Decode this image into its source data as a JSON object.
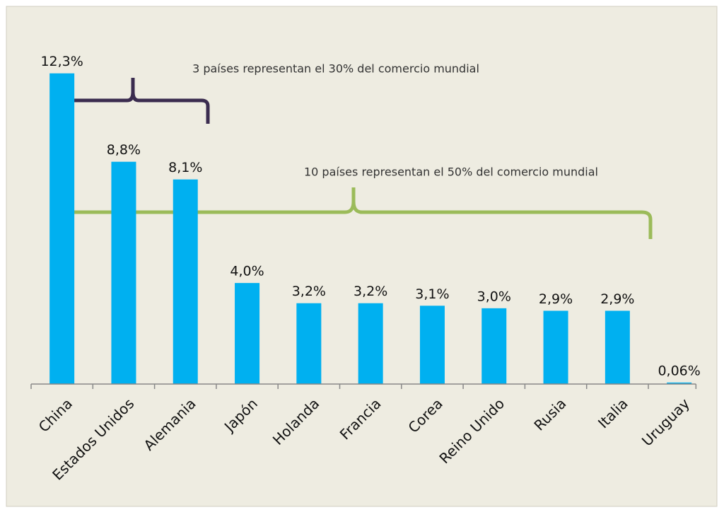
{
  "chart_data": {
    "type": "bar",
    "categories": [
      "China",
      "Estados Unidos",
      "Alemania",
      "Japón",
      "Holanda",
      "Francia",
      "Corea",
      "Reino Unido",
      "Rusia",
      "Italia",
      "Uruguay"
    ],
    "values": [
      12.3,
      8.8,
      8.1,
      4.0,
      3.2,
      3.2,
      3.1,
      3.0,
      2.9,
      2.9,
      0.06
    ],
    "value_labels": [
      "12,3%",
      "8,8%",
      "8,1%",
      "4,0%",
      "3,2%",
      "3,2%",
      "3,1%",
      "3,0%",
      "2,9%",
      "2,9%",
      "0,06%"
    ],
    "color": "#00b0f0",
    "ylim": [
      0,
      14
    ],
    "annotations": [
      "3 países representan el 30% del comercio mundial",
      "10 países representan el 50% del comercio mundial"
    ]
  }
}
